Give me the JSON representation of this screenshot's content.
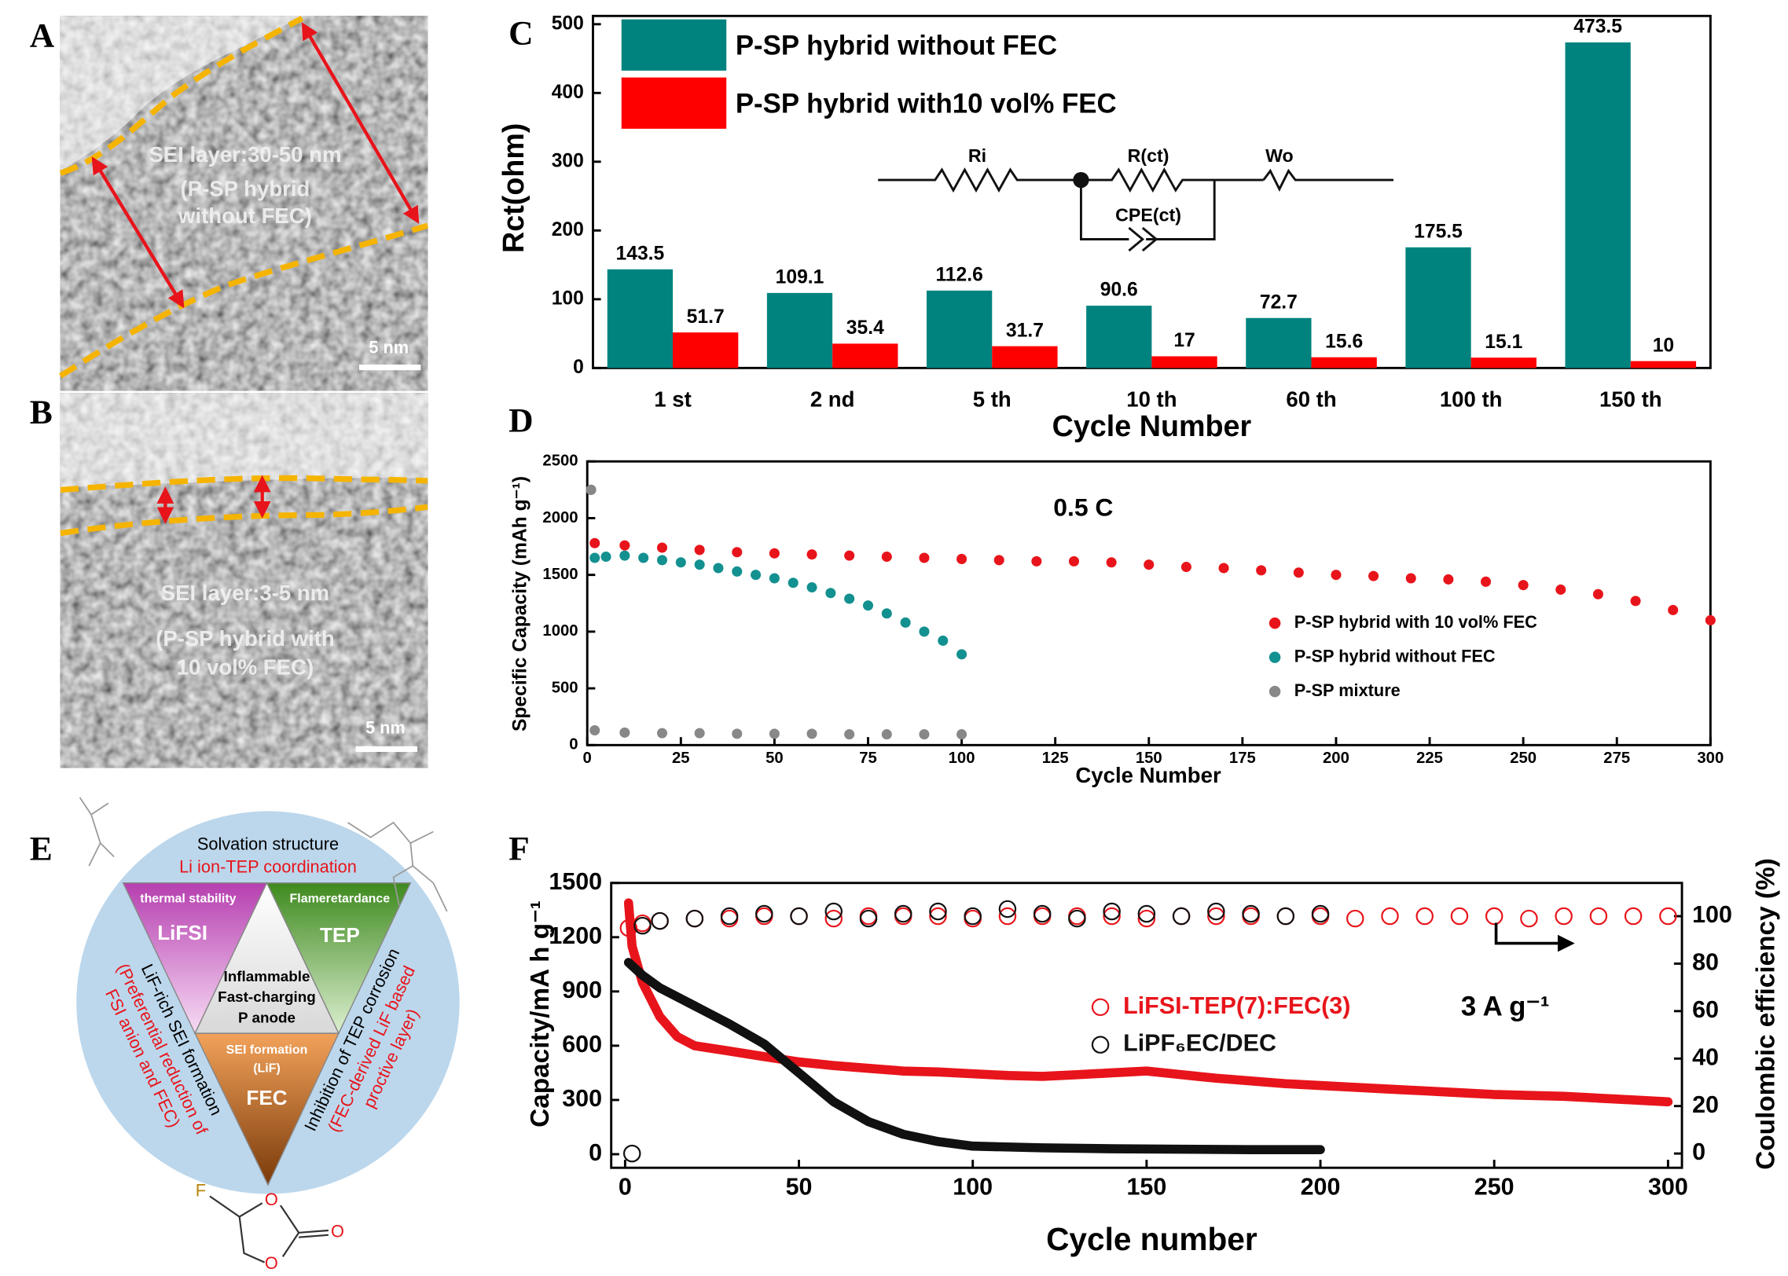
{
  "panels": {
    "A": {
      "label": "A",
      "texts": [
        "SEI layer:30-50 nm",
        "(P-SP hybrid",
        "without FEC)"
      ],
      "scale_bar": "5 nm"
    },
    "B": {
      "label": "B",
      "texts": [
        "SEI layer:3-5 nm",
        "(P-SP hybrid with",
        "10 vol% FEC)"
      ],
      "scale_bar": "5 nm"
    },
    "E": {
      "label": "E",
      "top": "Solvation structure",
      "top_sub": "Li ion-TEP coordination",
      "triangles": [
        {
          "heading": "thermal stability",
          "name": "LiFSI"
        },
        {
          "heading": "Flameretardance",
          "name": "TEP"
        },
        {
          "heading": "SEI formation",
          "sub": "(LiF)",
          "name": "FEC"
        }
      ],
      "center": [
        "Inflammable",
        "Fast-charging",
        "P anode"
      ],
      "left": [
        "LiF-rich SEI formation",
        "(Preferential reduction of",
        "FSI anion and FEC)"
      ],
      "right": [
        "Inhibition of TEP corrosion",
        "(FEC-derived LiF based",
        "proctive layer)"
      ],
      "molecule_atoms": [
        "F",
        "O",
        "O",
        "O"
      ]
    }
  },
  "chart_data": [
    {
      "type": "bar",
      "panel_label": "C",
      "y_label": "Rct(ohm)",
      "x_label": "Cycle Number",
      "categories": [
        "1 st",
        "2 nd",
        "5 th",
        "10 th",
        "60 th",
        "100 th",
        "150 th"
      ],
      "series": [
        {
          "name": "P-SP hybrid without FEC",
          "color": "#00837f",
          "values": [
            143.5,
            109.1,
            112.6,
            90.6,
            72.7,
            175.5,
            473.5
          ]
        },
        {
          "name": "P-SP hybrid with10 vol% FEC",
          "color": "#ff0000",
          "values": [
            51.7,
            35.4,
            31.7,
            17,
            15.6,
            15.1,
            10
          ]
        }
      ],
      "ylim": [
        0,
        512
      ],
      "yticks": [
        0,
        100,
        200,
        300,
        400,
        500
      ],
      "circuit_labels": [
        "Ri",
        "R(ct)",
        "Wo",
        "CPE(ct)"
      ]
    },
    {
      "type": "scatter",
      "panel_label": "D",
      "y_label": "Specific Capacity (mAh g⁻¹)",
      "x_label": "Cycle Number",
      "annotations": [
        "0.5 C"
      ],
      "series": [
        {
          "name": "P-SP hybrid with 10 vol% FEC",
          "color": "#e8141b",
          "x": [
            1,
            2,
            10,
            20,
            30,
            40,
            50,
            60,
            70,
            80,
            90,
            100,
            110,
            120,
            130,
            140,
            150,
            160,
            170,
            180,
            190,
            200,
            210,
            220,
            230,
            240,
            250,
            260,
            270,
            280,
            290,
            300
          ],
          "values": [
            2250,
            1780,
            1760,
            1740,
            1720,
            1700,
            1690,
            1680,
            1670,
            1660,
            1650,
            1640,
            1630,
            1620,
            1620,
            1610,
            1590,
            1570,
            1560,
            1540,
            1520,
            1500,
            1490,
            1470,
            1460,
            1440,
            1410,
            1370,
            1330,
            1270,
            1190,
            1100
          ]
        },
        {
          "name": "P-SP hybrid without FEC",
          "color": "#139090",
          "x": [
            1,
            2,
            5,
            10,
            15,
            20,
            25,
            30,
            35,
            40,
            45,
            50,
            55,
            60,
            65,
            70,
            75,
            80,
            85,
            90,
            95,
            100
          ],
          "values": [
            2250,
            1650,
            1660,
            1670,
            1650,
            1630,
            1610,
            1590,
            1560,
            1530,
            1500,
            1470,
            1430,
            1390,
            1340,
            1290,
            1230,
            1160,
            1080,
            1000,
            920,
            800
          ]
        },
        {
          "name": "P-SP mixture",
          "color": "#888888",
          "x": [
            1,
            2,
            10,
            20,
            30,
            40,
            50,
            60,
            70,
            80,
            90,
            100
          ],
          "values": [
            2250,
            130,
            110,
            105,
            105,
            100,
            100,
            100,
            95,
            95,
            95,
            95
          ]
        }
      ],
      "xlim": [
        0,
        300
      ],
      "xticks": [
        0,
        25,
        50,
        75,
        100,
        125,
        150,
        175,
        200,
        225,
        250,
        275,
        300
      ],
      "ylim": [
        0,
        2500
      ],
      "yticks": [
        0,
        500,
        1000,
        1500,
        2000,
        2500
      ]
    },
    {
      "type": "line",
      "panel_label": "F",
      "y_label": "Capacity/mA h g⁻¹",
      "y2_label": "Coulombic efficiency (%)",
      "x_label": "Cycle number",
      "annotations": [
        "3 A g⁻¹"
      ],
      "series": [
        {
          "color": "#e8141b",
          "style": "line",
          "x": [
            1,
            2,
            5,
            10,
            15,
            20,
            30,
            40,
            50,
            60,
            70,
            80,
            90,
            100,
            110,
            120,
            130,
            140,
            150,
            160,
            170,
            180,
            190,
            200,
            210,
            220,
            230,
            240,
            250,
            260,
            270,
            280,
            290,
            300
          ],
          "values": [
            1390,
            1150,
            950,
            760,
            650,
            600,
            570,
            540,
            510,
            490,
            475,
            460,
            455,
            445,
            435,
            430,
            440,
            450,
            460,
            440,
            420,
            405,
            390,
            380,
            370,
            360,
            350,
            340,
            330,
            325,
            320,
            310,
            300,
            290
          ]
        },
        {
          "color": "#111111",
          "style": "line",
          "x": [
            1,
            5,
            10,
            20,
            30,
            40,
            50,
            60,
            70,
            80,
            90,
            100,
            120,
            140,
            160,
            180,
            200
          ],
          "values": [
            1060,
            990,
            920,
            820,
            720,
            610,
            450,
            290,
            180,
            110,
            70,
            45,
            35,
            30,
            28,
            25,
            25
          ]
        },
        {
          "name": "LiFSI-TEP(7):FEC(3)",
          "color": "#e8141b",
          "style": "open-circle",
          "axis": "y2",
          "x": [
            1,
            5,
            10,
            20,
            30,
            40,
            50,
            60,
            70,
            80,
            90,
            100,
            110,
            120,
            130,
            140,
            150,
            160,
            170,
            180,
            190,
            200,
            210,
            220,
            230,
            240,
            250,
            260,
            270,
            280,
            290,
            300
          ],
          "values": [
            95,
            97,
            98,
            99,
            99,
            100,
            100,
            99,
            100,
            100,
            100,
            99,
            100,
            100,
            100,
            100,
            99,
            100,
            100,
            100,
            100,
            100,
            99,
            100,
            100,
            100,
            100,
            99,
            100,
            100,
            100,
            100
          ]
        },
        {
          "name": "LiPF₆EC/DEC",
          "color": "#111111",
          "style": "open-circle",
          "axis": "y2",
          "x": [
            2,
            5,
            10,
            20,
            30,
            40,
            50,
            60,
            70,
            80,
            90,
            100,
            110,
            120,
            130,
            140,
            150,
            160,
            170,
            180,
            190,
            200
          ],
          "values": [
            0,
            96,
            98,
            99,
            100,
            101,
            100,
            102,
            99,
            101,
            102,
            100,
            103,
            101,
            99,
            102,
            101,
            100,
            102,
            101,
            100,
            101
          ]
        }
      ],
      "xlim": [
        -4,
        304
      ],
      "xticks": [
        0,
        50,
        100,
        150,
        200,
        250,
        300
      ],
      "ylim": [
        -75,
        1500
      ],
      "yticks": [
        0,
        300,
        600,
        900,
        1200,
        1500
      ],
      "y2lim": [
        -6,
        114
      ],
      "y2ticks": [
        0,
        20,
        40,
        60,
        80,
        100
      ]
    }
  ]
}
